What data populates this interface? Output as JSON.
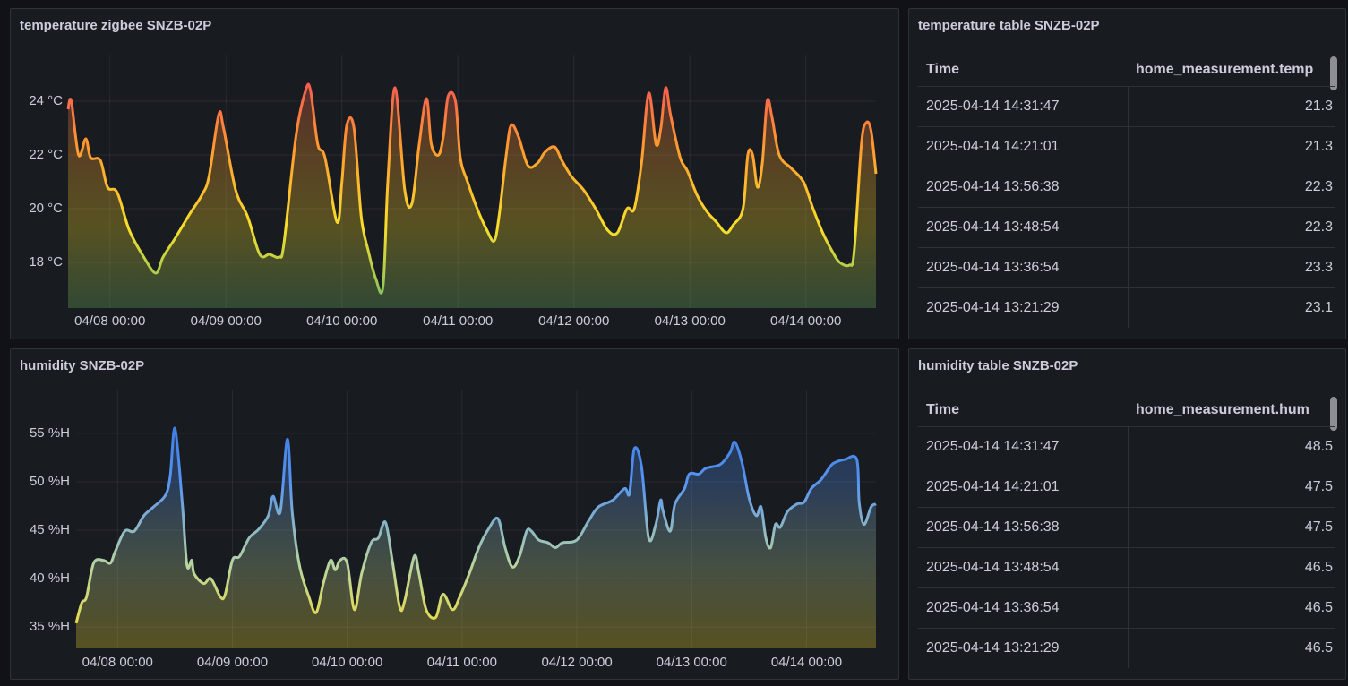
{
  "chart_data": [
    {
      "type": "line",
      "title": "temperature zigbee SNZB-02P",
      "x": [
        "04/07 15:20",
        "04/07 16:00",
        "04/07 17:30",
        "04/07 19:00",
        "04/07 20:00",
        "04/07 22:00",
        "04/07 23:30",
        "04/08 01:30",
        "04/08 04:00",
        "04/08 07:00",
        "04/08 09:30",
        "04/08 11:00",
        "04/08 13:30",
        "04/08 16:30",
        "04/08 19:00",
        "04/08 20:30",
        "04/08 22:30",
        "04/08 23:30",
        "04/09 02:00",
        "04/09 04:30",
        "04/09 07:00",
        "04/09 09:00",
        "04/09 11:00",
        "04/09 12:00",
        "04/09 14:30",
        "04/09 16:30",
        "04/09 17:30",
        "04/09 19:00",
        "04/09 20:30",
        "04/09 23:00",
        "04/10 00:00",
        "04/10 01:00",
        "04/10 02:30",
        "04/10 04:00",
        "04/10 05:30",
        "04/10 07:00",
        "04/10 08:30",
        "04/10 09:30",
        "04/10 11:00",
        "04/10 13:00",
        "04/10 14:30",
        "04/10 16:00",
        "04/10 17:30",
        "04/10 18:30",
        "04/10 20:00",
        "04/10 21:00",
        "04/10 22:00",
        "04/10 23:30",
        "04/11 00:30",
        "04/11 02:00",
        "04/11 04:00",
        "04/11 06:00",
        "04/11 07:30",
        "04/11 08:30",
        "04/11 10:00",
        "04/11 11:00",
        "04/11 12:30",
        "04/11 14:30",
        "04/11 16:30",
        "04/11 18:00",
        "04/11 20:00",
        "04/11 21:30",
        "04/11 23:30",
        "04/12 02:00",
        "04/12 04:30",
        "04/12 07:00",
        "04/12 09:00",
        "04/12 11:00",
        "04/12 12:30",
        "04/12 14:00",
        "04/12 15:30",
        "04/12 17:00",
        "04/12 18:00",
        "04/12 19:00",
        "04/12 20:00",
        "04/12 22:00",
        "04/12 23:30",
        "04/13 01:30",
        "04/13 03:30",
        "04/13 05:30",
        "04/13 07:30",
        "04/13 09:00",
        "04/13 11:00",
        "04/13 12:00",
        "04/13 13:00",
        "04/13 14:00",
        "04/13 15:00",
        "04/13 16:00",
        "04/13 17:00",
        "04/13 18:30",
        "04/13 21:00",
        "04/13 23:30",
        "04/14 01:30",
        "04/14 03:30",
        "04/14 05:30",
        "04/14 07:00",
        "04/14 09:00",
        "04/14 10:00",
        "04/14 11:30",
        "04/14 12:30",
        "04/14 13:30",
        "04/14 14:31"
      ],
      "values": [
        23.7,
        24.0,
        22.0,
        22.6,
        21.9,
        21.8,
        20.8,
        20.6,
        19.2,
        18.2,
        17.6,
        18.2,
        18.9,
        19.8,
        20.5,
        21.2,
        23.5,
        23.0,
        20.7,
        19.7,
        18.3,
        18.3,
        18.2,
        18.7,
        22.7,
        24.4,
        24.4,
        22.4,
        21.9,
        19.5,
        21.0,
        23.1,
        23.0,
        19.7,
        18.4,
        17.4,
        17.1,
        21.0,
        24.5,
        20.7,
        20.2,
        22.4,
        24.1,
        22.4,
        22.0,
        22.7,
        24.2,
        24.0,
        21.9,
        21.0,
        20.0,
        19.2,
        18.8,
        19.7,
        22.0,
        23.1,
        22.7,
        21.6,
        21.7,
        22.1,
        22.3,
        21.8,
        21.2,
        20.7,
        20.0,
        19.2,
        19.1,
        20.0,
        20.0,
        21.7,
        24.3,
        22.4,
        23.0,
        24.5,
        23.5,
        21.9,
        21.4,
        20.5,
        19.9,
        19.5,
        19.1,
        19.4,
        20.0,
        22.0,
        22.0,
        20.8,
        21.7,
        24.0,
        23.4,
        22.0,
        21.5,
        21.0,
        20.0,
        19.1,
        18.4,
        18.0,
        17.9,
        18.4,
        22.4,
        23.2,
        22.9,
        21.3
      ],
      "gradient": [
        "#73bf69",
        "#fade2a",
        "#ff9830",
        "#f2495c"
      ],
      "xlim": [
        "04/07 15:20",
        "04/14 14:31"
      ],
      "xticks": [
        "04/08 00:00",
        "04/09 00:00",
        "04/10 00:00",
        "04/11 00:00",
        "04/12 00:00",
        "04/13 00:00",
        "04/14 00:00"
      ],
      "ylim": [
        16.3,
        25.4
      ],
      "yticks": [
        {
          "value": 18,
          "label": "18 °C"
        },
        {
          "value": 20,
          "label": "20 °C"
        },
        {
          "value": 22,
          "label": "22 °C"
        },
        {
          "value": 24,
          "label": "24 °C"
        }
      ],
      "grid": true
    },
    {
      "type": "line",
      "title": "humidity SNZB-02P",
      "x": [
        "04/07 15:20",
        "04/07 16:30",
        "04/07 17:30",
        "04/07 19:00",
        "04/07 21:00",
        "04/07 22:30",
        "04/07 23:30",
        "04/08 01:30",
        "04/08 03:30",
        "04/08 05:30",
        "04/08 07:30",
        "04/08 10:00",
        "04/08 11:00",
        "04/08 12:00",
        "04/08 13:30",
        "04/08 14:30",
        "04/08 15:30",
        "04/08 16:00",
        "04/08 18:00",
        "04/08 19:30",
        "04/08 21:30",
        "04/08 22:30",
        "04/09 00:00",
        "04/09 01:30",
        "04/09 03:30",
        "04/09 05:30",
        "04/09 07:30",
        "04/09 08:30",
        "04/09 10:00",
        "04/09 11:30",
        "04/09 12:30",
        "04/09 14:00",
        "04/09 16:00",
        "04/09 17:30",
        "04/09 19:00",
        "04/09 20:30",
        "04/09 21:30",
        "04/09 22:30",
        "04/10 00:00",
        "04/10 01:30",
        "04/10 03:00",
        "04/10 05:00",
        "04/10 06:30",
        "04/10 08:00",
        "04/10 09:30",
        "04/10 11:00",
        "04/10 12:00",
        "04/10 14:00",
        "04/10 15:00",
        "04/10 16:30",
        "04/10 18:30",
        "04/10 20:00",
        "04/10 22:00",
        "04/10 23:30",
        "04/11 01:30",
        "04/11 03:30",
        "04/11 05:30",
        "04/11 07:30",
        "04/11 09:00",
        "04/11 10:30",
        "04/11 12:00",
        "04/11 13:30",
        "04/11 14:30",
        "04/11 16:00",
        "04/11 18:00",
        "04/11 19:30",
        "04/11 21:00",
        "04/12 00:00",
        "04/12 02:30",
        "04/12 04:30",
        "04/12 07:30",
        "04/12 10:00",
        "04/12 11:00",
        "04/12 12:00",
        "04/12 13:30",
        "04/12 15:00",
        "04/12 16:30",
        "04/12 17:30",
        "04/12 18:00",
        "04/12 19:30",
        "04/12 20:30",
        "04/12 22:30",
        "04/12 23:30",
        "04/13 01:30",
        "04/13 03:00",
        "04/13 06:00",
        "04/13 08:00",
        "04/13 09:00",
        "04/13 10:30",
        "04/13 12:00",
        "04/13 13:30",
        "04/13 14:30",
        "04/13 15:30",
        "04/13 16:30",
        "04/13 17:30",
        "04/13 18:30",
        "04/13 20:00",
        "04/13 22:00",
        "04/13 23:30",
        "04/14 01:00",
        "04/14 03:00",
        "04/14 05:00",
        "04/14 06:00",
        "04/14 08:00",
        "04/14 10:30",
        "04/14 11:00",
        "04/14 12:00",
        "04/14 13:30",
        "04/14 14:31"
      ],
      "values": [
        35.4,
        37.5,
        38.1,
        41.6,
        41.9,
        41.6,
        42.8,
        44.9,
        44.9,
        46.5,
        47.4,
        48.6,
        50.6,
        55.5,
        47.9,
        41.4,
        41.9,
        40.5,
        39.5,
        40.0,
        38.1,
        38.4,
        41.9,
        42.3,
        44.2,
        45.1,
        46.5,
        48.5,
        46.9,
        54.4,
        46.9,
        41.4,
        38.1,
        36.5,
        39.5,
        41.9,
        40.9,
        41.9,
        41.6,
        36.8,
        40.5,
        43.7,
        44.2,
        45.8,
        41.6,
        37.0,
        37.7,
        42.3,
        40.5,
        36.8,
        36.0,
        38.4,
        36.8,
        38.1,
        40.5,
        43.2,
        45.1,
        46.2,
        43.2,
        41.2,
        42.3,
        44.9,
        44.9,
        44.0,
        43.7,
        43.2,
        43.7,
        44.0,
        46.0,
        47.4,
        48.1,
        49.3,
        48.8,
        53.4,
        51.6,
        44.2,
        45.6,
        48.1,
        47.0,
        44.9,
        47.7,
        49.3,
        50.8,
        50.8,
        51.4,
        51.8,
        53.0,
        54.1,
        52.0,
        48.3,
        46.5,
        47.4,
        44.2,
        43.2,
        45.6,
        45.3,
        46.9,
        47.7,
        47.9,
        49.3,
        50.2,
        51.6,
        52.0,
        52.3,
        52.3,
        47.9,
        45.6,
        47.4,
        47.7
      ],
      "gradient": [
        "#fade2a",
        "#b8d4a0",
        "#5794f2",
        "#3274d9"
      ],
      "xlim": [
        "04/07 15:20",
        "04/14 14:31"
      ],
      "xticks": [
        "04/08 00:00",
        "04/09 00:00",
        "04/10 00:00",
        "04/11 00:00",
        "04/12 00:00",
        "04/13 00:00",
        "04/14 00:00"
      ],
      "ylim": [
        32.8,
        58.5
      ],
      "yticks": [
        {
          "value": 35,
          "label": "35 %H"
        },
        {
          "value": 40,
          "label": "40 %H"
        },
        {
          "value": 45,
          "label": "45 %H"
        },
        {
          "value": 50,
          "label": "50 %H"
        },
        {
          "value": 55,
          "label": "55 %H"
        }
      ],
      "grid": true
    }
  ],
  "tables": [
    {
      "title": "temperature table SNZB-02P",
      "columns": [
        "Time",
        "home_measurement.temp"
      ],
      "rows": [
        [
          "2025-04-14 14:31:47",
          21.3
        ],
        [
          "2025-04-14 14:21:01",
          21.3
        ],
        [
          "2025-04-14 13:56:38",
          22.3
        ],
        [
          "2025-04-14 13:48:54",
          22.3
        ],
        [
          "2025-04-14 13:36:54",
          23.3
        ],
        [
          "2025-04-14 13:21:29",
          23.1
        ]
      ]
    },
    {
      "title": "humidity table SNZB-02P",
      "columns": [
        "Time",
        "home_measurement.hum"
      ],
      "rows": [
        [
          "2025-04-14 14:31:47",
          48.5
        ],
        [
          "2025-04-14 14:21:01",
          47.5
        ],
        [
          "2025-04-14 13:56:38",
          47.5
        ],
        [
          "2025-04-14 13:48:54",
          46.5
        ],
        [
          "2025-04-14 13:36:54",
          46.5
        ],
        [
          "2025-04-14 13:21:29",
          46.5
        ]
      ]
    }
  ]
}
